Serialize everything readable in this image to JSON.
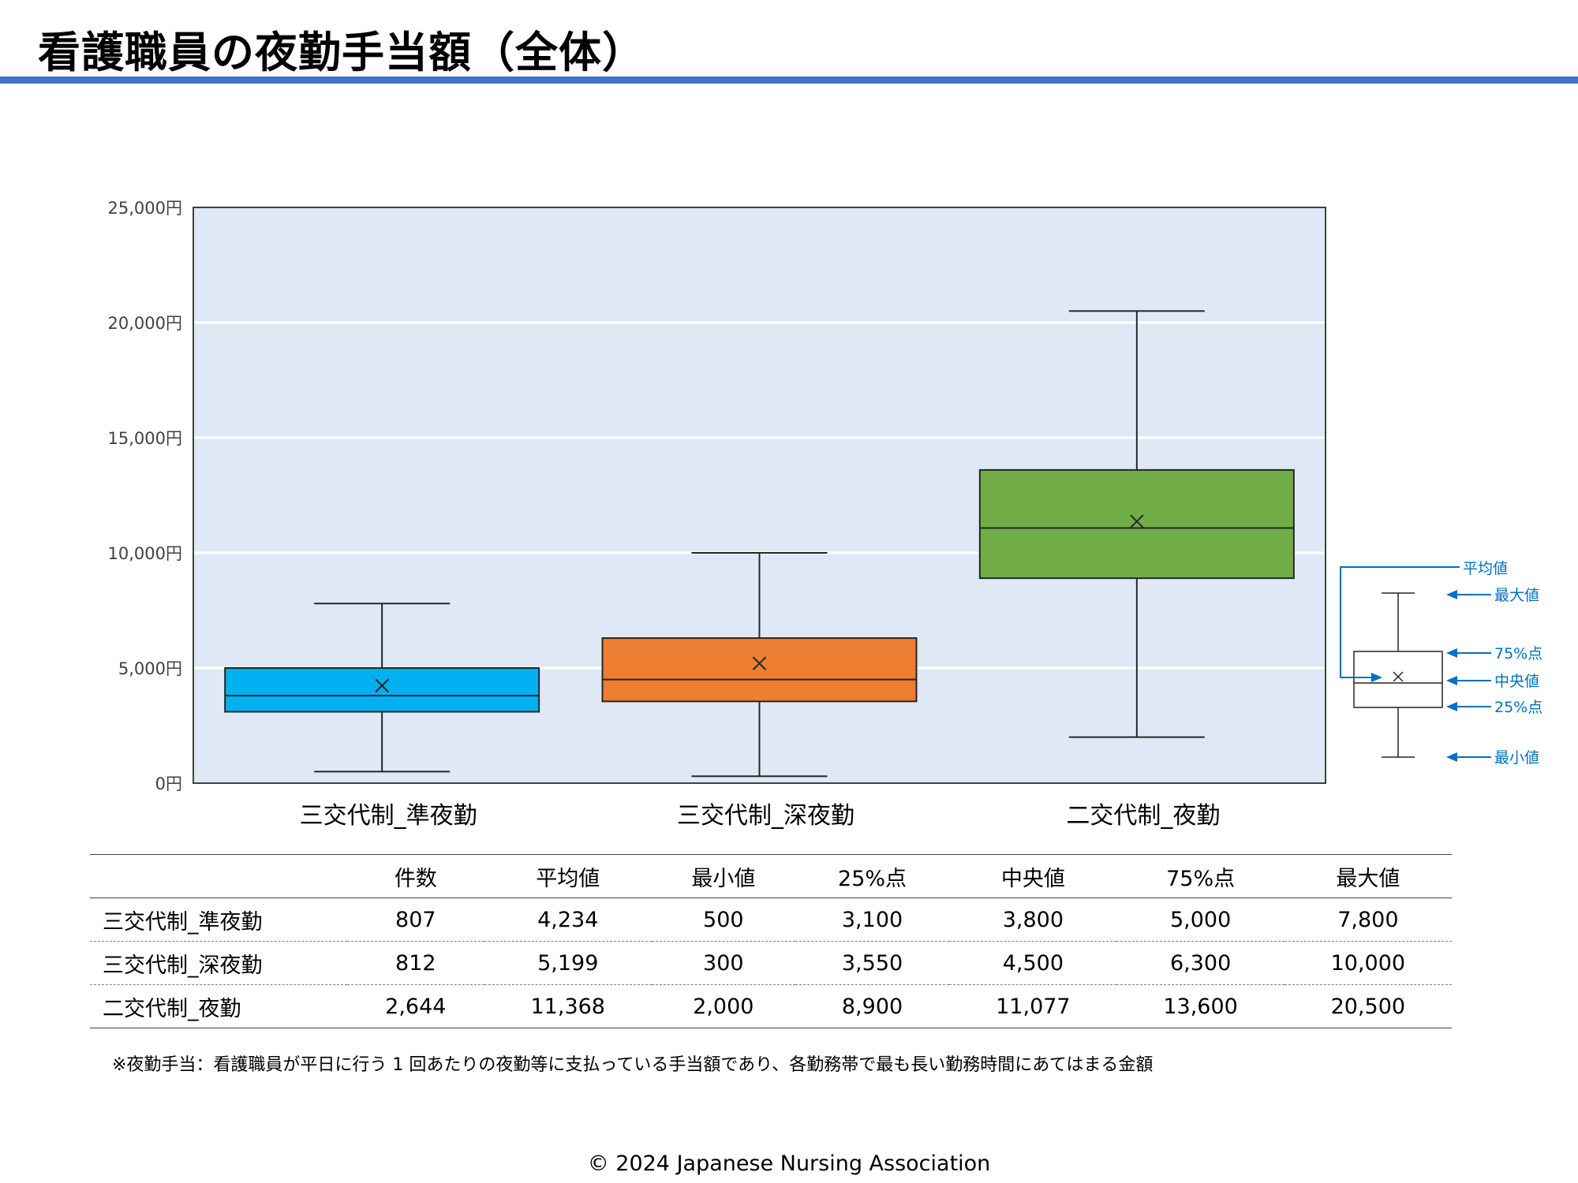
{
  "page": {
    "title": "看護職員の夜勤手当額（全体）",
    "footnote": "※夜勤手当：看護職員が平日に行う 1 回あたりの夜勤等に支払っている手当額であり、各勤務帯で最も長い勤務時間にあてはまる金額",
    "copyright": "© 2024 Japanese Nursing Association"
  },
  "chart_data": {
    "type": "box",
    "categories": [
      "三交代制_準夜勤",
      "三交代制_深夜勤",
      "二交代制_夜勤"
    ],
    "series": [
      {
        "category": "三交代制_準夜勤",
        "min": 500,
        "q1": 3100,
        "median": 3800,
        "q3": 5000,
        "max": 7800,
        "mean": 4234,
        "color": "#00b0f0"
      },
      {
        "category": "三交代制_深夜勤",
        "min": 300,
        "q1": 3550,
        "median": 4500,
        "q3": 6300,
        "max": 10000,
        "mean": 5199,
        "color": "#ed7d31"
      },
      {
        "category": "二交代制_夜勤",
        "min": 2000,
        "q1": 8900,
        "median": 11077,
        "q3": 13600,
        "max": 20500,
        "mean": 11368,
        "color": "#70ad47"
      }
    ],
    "ylim": [
      0,
      25000
    ],
    "yticks": [
      "0円",
      "5,000円",
      "10,000円",
      "15,000円",
      "20,000円",
      "25,000円"
    ],
    "plot_background": "#dfe9f5",
    "grid": true,
    "legend_key": {
      "mean": "平均値",
      "max": "最大値",
      "q3": "75%点",
      "median": "中央値",
      "q1": "25%点",
      "min": "最小値",
      "color": "#0070c0"
    }
  },
  "table": {
    "headers": [
      "",
      "件数",
      "平均値",
      "最小値",
      "25%点",
      "中央値",
      "75%点",
      "最大値"
    ],
    "rows": [
      [
        "三交代制_準夜勤",
        "807",
        "4,234",
        "500",
        "3,100",
        "3,800",
        "5,000",
        "7,800"
      ],
      [
        "三交代制_深夜勤",
        "812",
        "5,199",
        "300",
        "3,550",
        "4,500",
        "6,300",
        "10,000"
      ],
      [
        "二交代制_夜勤",
        "2,644",
        "11,368",
        "2,000",
        "8,900",
        "11,077",
        "13,600",
        "20,500"
      ]
    ]
  }
}
